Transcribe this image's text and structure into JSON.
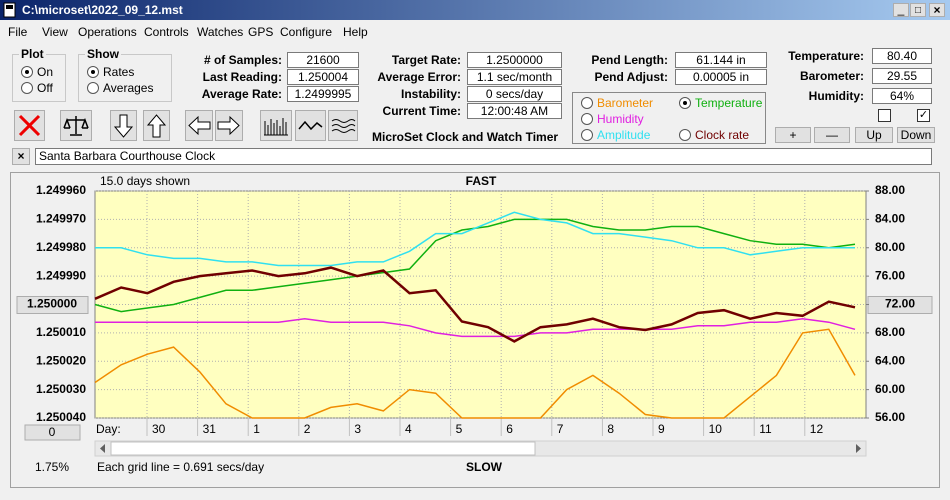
{
  "window": {
    "title": "C:\\microset\\2022_09_12.mst"
  },
  "menu": [
    "File",
    "View",
    "Operations",
    "Controls",
    "Watches",
    "GPS",
    "Configure",
    "Help"
  ],
  "plot": {
    "label": "Plot",
    "options": [
      {
        "label": "On",
        "checked": true
      },
      {
        "label": "Off",
        "checked": false
      }
    ]
  },
  "show": {
    "label": "Show",
    "options": [
      {
        "label": "Rates",
        "checked": true
      },
      {
        "label": "Averages",
        "checked": false
      }
    ]
  },
  "samples": [
    {
      "label": "# of Samples:",
      "value": "21600"
    },
    {
      "label": "Last Reading:",
      "value": "1.250004"
    },
    {
      "label": "Average Rate:",
      "value": "1.2499995"
    }
  ],
  "rates": [
    {
      "label": "Target Rate:",
      "value": "1.2500000"
    },
    {
      "label": "Average Error:",
      "value": "1.1 sec/month"
    },
    {
      "label": "Instability:",
      "value": "0 secs/day"
    },
    {
      "label": "Current Time:",
      "value": "12:00:48 AM"
    }
  ],
  "pendulum": [
    {
      "label": "Pend Length:",
      "value": "61.144 in"
    },
    {
      "label": "Pend Adjust:",
      "value": "0.00005 in"
    }
  ],
  "sensors": [
    {
      "label": "Temperature:",
      "value": "80.40"
    },
    {
      "label": "Barometer:",
      "value": "29.55"
    },
    {
      "label": "Humidity:",
      "value": "64%"
    }
  ],
  "checkboxes": [
    false,
    true
  ],
  "buttons": [
    "+",
    "—",
    "Up",
    "Down"
  ],
  "app_title": "MicroSet Clock and Watch Timer",
  "clock_name": "Santa Barbara Courthouse Clock",
  "chart_data": {
    "type": "line",
    "days_shown": "15.0 days shown",
    "top_label": "FAST",
    "bottom_label": "SLOW",
    "x_label": "Day:",
    "day_labels": [
      "30",
      "31",
      "1",
      "2",
      "3",
      "4",
      "5",
      "6",
      "7",
      "8",
      "9",
      "10",
      "11",
      "12"
    ],
    "ylim": [
      1.25004,
      1.24996
    ],
    "yticks": [
      {
        "value": 1.24996,
        "label": "1.249960"
      },
      {
        "value": 1.24997,
        "label": "1.249970"
      },
      {
        "value": 1.24998,
        "label": "1.249980"
      },
      {
        "value": 1.24999,
        "label": "1.249990"
      },
      {
        "value": 1.25,
        "label": "1.250000"
      },
      {
        "value": 1.25001,
        "label": "1.250010"
      },
      {
        "value": 1.25002,
        "label": "1.250020"
      },
      {
        "value": 1.25003,
        "label": "1.250030"
      },
      {
        "value": 1.25004,
        "label": "1.250040"
      }
    ],
    "y2lim": [
      56,
      88
    ],
    "y2ticks": [
      {
        "value": 88,
        "label": "88.00"
      },
      {
        "value": 84,
        "label": "84.00"
      },
      {
        "value": 80,
        "label": "80.00"
      },
      {
        "value": 76,
        "label": "76.00"
      },
      {
        "value": 72,
        "label": "72.00"
      },
      {
        "value": 68,
        "label": "68.00"
      },
      {
        "value": 64,
        "label": "64.00"
      },
      {
        "value": 60,
        "label": "60.00"
      },
      {
        "value": 56,
        "label": "56.00"
      }
    ],
    "grid": true,
    "series": [
      {
        "name": "Barometer",
        "color": "#f08c00",
        "axis": "y2",
        "checked": false,
        "values": [
          61,
          63.5,
          65,
          66,
          62.5,
          58,
          56,
          56,
          56,
          57.5,
          58,
          57,
          60,
          59.5,
          56,
          56,
          56,
          56,
          60,
          62,
          59.5,
          56.5,
          56,
          56,
          56,
          59,
          62,
          68,
          68.5,
          62
        ]
      },
      {
        "name": "Temperature",
        "color": "#10b010",
        "axis": "y2",
        "checked": true,
        "values": [
          72,
          71,
          71.5,
          72,
          73,
          74,
          74,
          74.5,
          75,
          75.5,
          76,
          76.5,
          77,
          81,
          82.5,
          83,
          84,
          84,
          84,
          83,
          82.5,
          82.5,
          83,
          83,
          82,
          81,
          80.5,
          80.5,
          80,
          80.5
        ]
      },
      {
        "name": "Humidity",
        "color": "#e020e0",
        "axis": "y2",
        "checked": false,
        "values": [
          69.5,
          69.5,
          69.5,
          69.5,
          69.5,
          69.5,
          69.5,
          69.5,
          70,
          69.5,
          69.5,
          69.5,
          69,
          68,
          67.5,
          67.5,
          67.5,
          68,
          68,
          68.5,
          68.5,
          68.5,
          68.5,
          69,
          69,
          69.5,
          69.5,
          70,
          69.5,
          68.5
        ]
      },
      {
        "name": "Amplitude",
        "color": "#30e0f0",
        "axis": "y2",
        "checked": false,
        "values": [
          80,
          80,
          79,
          78.5,
          78.5,
          78,
          78,
          77.5,
          77.5,
          77.5,
          78,
          78,
          79.5,
          82,
          82,
          83.5,
          85,
          84,
          83.5,
          82,
          82,
          81.5,
          81,
          80,
          80,
          79,
          79.5,
          80,
          80,
          80
        ]
      },
      {
        "name": "Clock rate",
        "color": "#700000",
        "axis": "y",
        "checked": false,
        "values": [
          1.249998,
          1.249994,
          1.249996,
          1.249992,
          1.24999,
          1.249989,
          1.249988,
          1.24999,
          1.249989,
          1.249987,
          1.24999,
          1.249988,
          1.249996,
          1.249995,
          1.250006,
          1.250008,
          1.250013,
          1.250008,
          1.250007,
          1.250005,
          1.250008,
          1.250009,
          1.250007,
          1.250003,
          1.250002,
          1.250005,
          1.250003,
          1.250004,
          1.249999,
          1.250001
        ]
      }
    ],
    "footer": "Each grid line = 0.691 secs/day",
    "percent": "1.75%",
    "zero_button": "0"
  }
}
